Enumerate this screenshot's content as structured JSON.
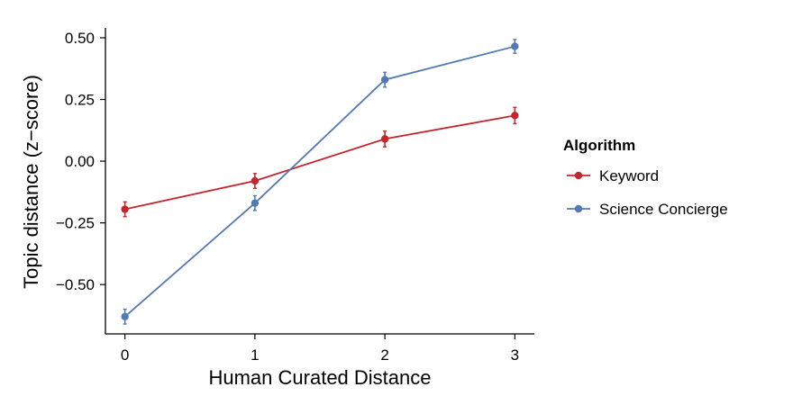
{
  "chart_data": {
    "type": "line",
    "xlabel": "Human Curated Distance",
    "ylabel": "Topic distance (z−score)",
    "x": [
      0,
      1,
      2,
      3
    ],
    "x_ticks": [
      "0",
      "1",
      "2",
      "3"
    ],
    "xlim": [
      -0.15,
      3.15
    ],
    "ylim": [
      -0.7,
      0.54
    ],
    "y_ticks": [
      {
        "value": 0.5,
        "label": "0.50"
      },
      {
        "value": 0.25,
        "label": "0.25"
      },
      {
        "value": 0.0,
        "label": "0.00"
      },
      {
        "value": -0.25,
        "label": "−0.25"
      },
      {
        "value": -0.5,
        "label": "−0.50"
      }
    ],
    "grid": false,
    "legend": {
      "title": "Algorithm",
      "placement": "right"
    },
    "series": [
      {
        "name": "Keyword",
        "color": "#c4262e",
        "values": [
          -0.195,
          -0.08,
          0.09,
          0.185
        ],
        "error": [
          0.03,
          0.03,
          0.032,
          0.033
        ]
      },
      {
        "name": "Science Concierge",
        "color": "#5379b4",
        "values": [
          -0.63,
          -0.17,
          0.33,
          0.465
        ],
        "error": [
          0.03,
          0.03,
          0.03,
          0.028
        ]
      }
    ]
  }
}
